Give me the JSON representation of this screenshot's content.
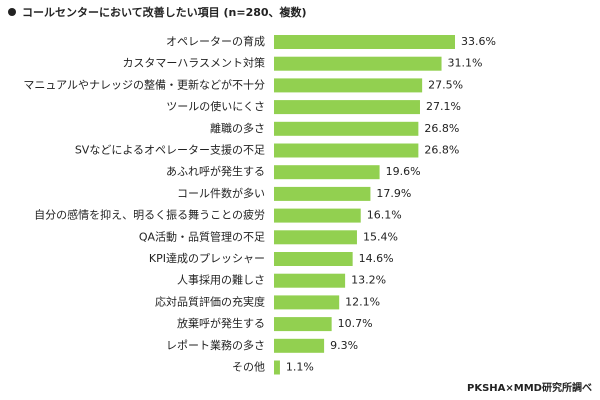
{
  "chart_data": {
    "type": "bar",
    "orientation": "horizontal",
    "title": "コールセンターにおいて改善したい項目 (n=280、複数)",
    "source": "PKSHA×MMD研究所調べ",
    "color": "#92d050",
    "categories": [
      "オペレーターの育成",
      "カスタマーハラスメント対策",
      "マニュアルやナレッジの整備・更新などが不十分",
      "ツールの使いにくさ",
      "離職の多さ",
      "SVなどによるオペレーター支援の不足",
      "あふれ呼が発生する",
      "コール件数が多い",
      "自分の感情を抑え、明るく振る舞うことの疲労",
      "QA活動・品質管理の不足",
      "KPI達成のプレッシャー",
      "人事採用の難しさ",
      "応対品質評価の充実度",
      "放棄呼が発生する",
      "レポート業務の多さ",
      "その他"
    ],
    "values": [
      33.6,
      31.1,
      27.5,
      27.1,
      26.8,
      26.8,
      19.6,
      17.9,
      16.1,
      15.4,
      14.6,
      13.2,
      12.1,
      10.7,
      9.3,
      1.1
    ],
    "value_labels": [
      "33.6%",
      "31.1%",
      "27.5%",
      "27.1%",
      "26.8%",
      "26.8%",
      "19.6%",
      "17.9%",
      "16.1%",
      "15.4%",
      "14.6%",
      "13.2%",
      "12.1%",
      "10.7%",
      "9.3%",
      "1.1%"
    ]
  }
}
